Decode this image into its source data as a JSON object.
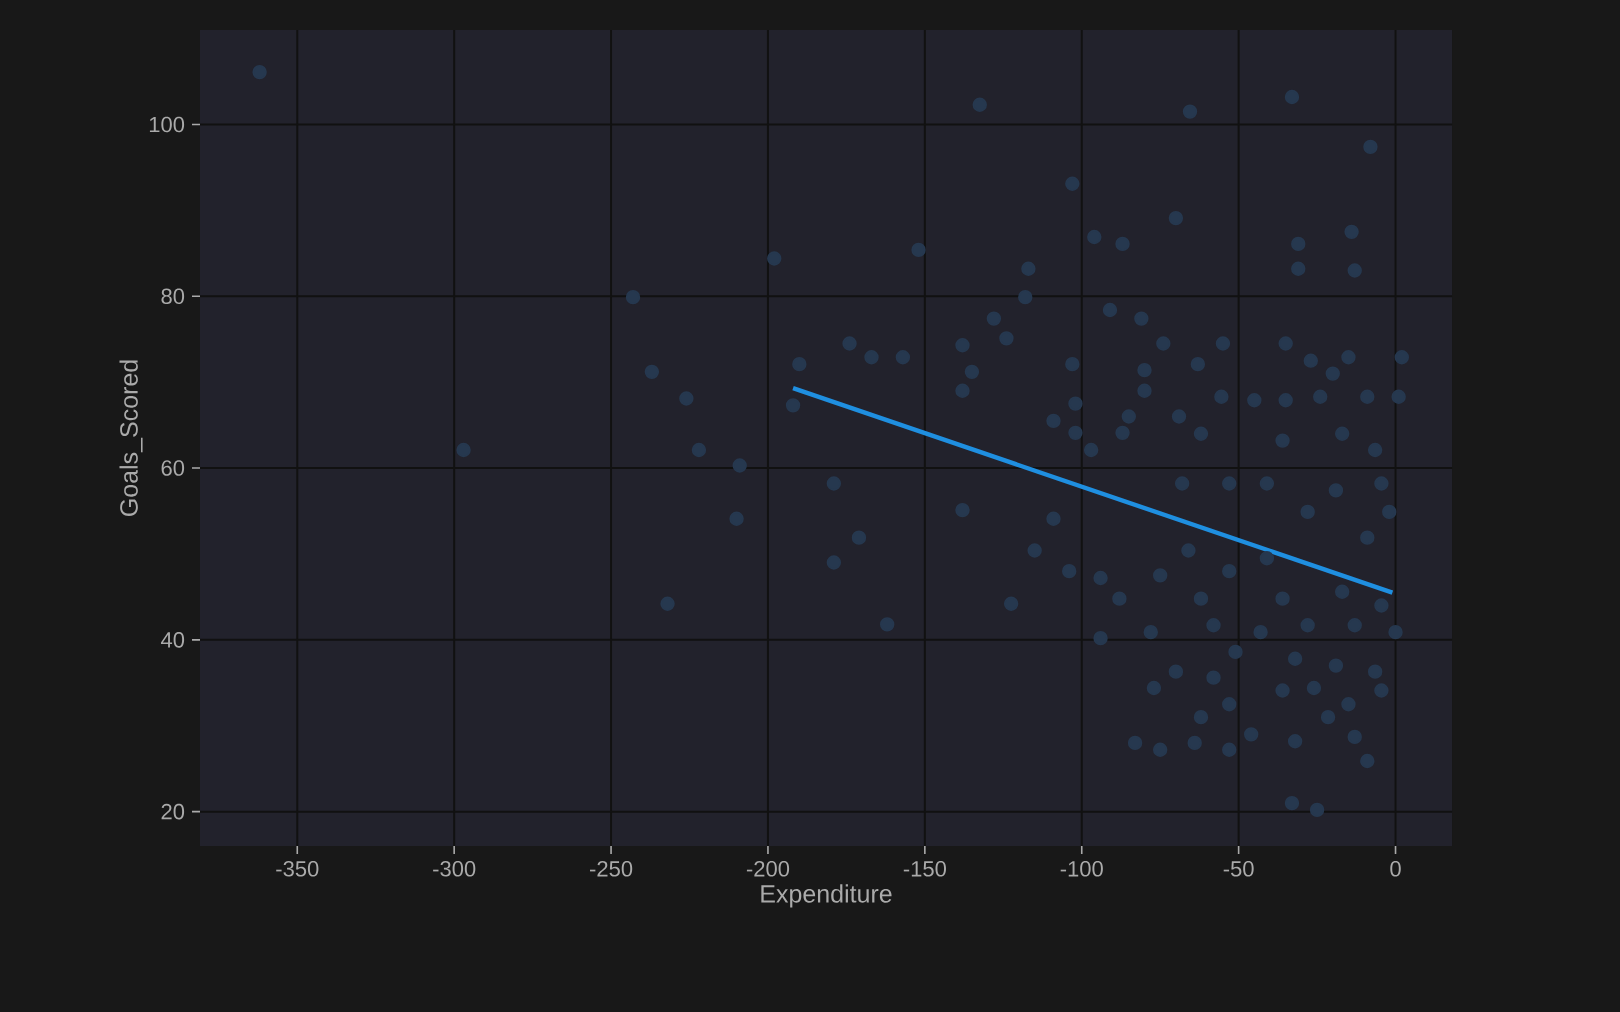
{
  "chart_data": {
    "type": "scatter",
    "xlabel": "Expenditure",
    "ylabel": "Goals_Scored",
    "xlim": [
      -381,
      18
    ],
    "ylim": [
      16,
      111
    ],
    "xticks": [
      -350,
      -300,
      -250,
      -200,
      -150,
      -100,
      -50,
      0
    ],
    "yticks": [
      20,
      40,
      60,
      80,
      100
    ],
    "grid": true,
    "series": [
      {
        "marker": "circle",
        "color": "#26384f",
        "x": [
          -362,
          -198,
          -243,
          -237,
          -226,
          -190,
          -192,
          -297,
          -222,
          -209,
          -210,
          -179,
          -179,
          -232,
          -132.5,
          -65.5,
          -33,
          -8,
          -103,
          -152,
          -70,
          -96,
          -87,
          -31,
          -14,
          -13,
          -31,
          -117,
          -118,
          -128,
          -124,
          -138,
          -174,
          -167,
          -157,
          -135,
          -138,
          -91,
          -81,
          -74,
          -55,
          -35,
          -103,
          -80,
          -80,
          -63,
          -27,
          -20,
          -15,
          2,
          -55.5,
          -45,
          -35,
          -24,
          -9,
          1,
          -109,
          -102,
          -102,
          -85,
          -87,
          -69,
          -62,
          -36,
          -17,
          -6.5,
          -97,
          -68,
          -53,
          -41,
          -19,
          -4.5,
          -138,
          -109,
          -171,
          -115,
          -104,
          -122.5,
          -162,
          -94,
          -88,
          -75,
          -66,
          -53,
          -41,
          -28,
          -9,
          -2,
          -17,
          -4.5,
          -36,
          -62,
          -78,
          -94,
          -58,
          -43,
          -28,
          -13,
          0,
          -51,
          -32,
          -19,
          -6.5,
          -70,
          -77,
          -58,
          -36,
          -26,
          -15,
          -4.5,
          -62,
          -53,
          -21.5,
          -13,
          -83,
          -75,
          -64,
          -53,
          -46,
          -32,
          -9,
          -33,
          -25
        ],
        "values": [
          106.1,
          84.4,
          79.9,
          71.2,
          68.1,
          72.1,
          67.3,
          62.1,
          62.1,
          60.3,
          54.1,
          58.2,
          49.0,
          44.2,
          102.3,
          101.5,
          103.2,
          97.4,
          93.1,
          85.4,
          89.1,
          86.9,
          86.1,
          86.1,
          87.5,
          83.0,
          83.2,
          83.2,
          79.9,
          77.4,
          75.1,
          74.3,
          74.5,
          72.9,
          72.9,
          71.2,
          69.0,
          78.4,
          77.4,
          74.5,
          74.5,
          74.5,
          72.1,
          71.4,
          69.0,
          72.1,
          72.5,
          71.0,
          72.9,
          72.9,
          68.3,
          67.9,
          67.9,
          68.3,
          68.3,
          68.3,
          65.5,
          67.5,
          64.1,
          66.0,
          64.1,
          66.0,
          64.0,
          63.2,
          64.0,
          62.1,
          62.1,
          58.2,
          58.2,
          58.2,
          57.4,
          58.2,
          55.1,
          54.1,
          51.9,
          50.4,
          48.0,
          44.2,
          41.8,
          47.2,
          44.8,
          47.5,
          50.4,
          48.0,
          49.5,
          54.9,
          51.9,
          54.9,
          45.6,
          44.0,
          44.8,
          44.8,
          40.9,
          40.2,
          41.7,
          40.9,
          41.7,
          41.7,
          40.9,
          38.6,
          37.8,
          37.0,
          36.3,
          36.3,
          34.4,
          35.6,
          34.1,
          34.4,
          32.5,
          34.1,
          31.0,
          32.5,
          31.0,
          28.7,
          28.0,
          27.2,
          28.0,
          27.2,
          29.0,
          28.2,
          25.9,
          21.0,
          20.2
        ]
      },
      {
        "type": "line",
        "color": "#1f8fe0",
        "x": [
          -192,
          -1
        ],
        "values": [
          69.3,
          45.5
        ]
      }
    ]
  }
}
